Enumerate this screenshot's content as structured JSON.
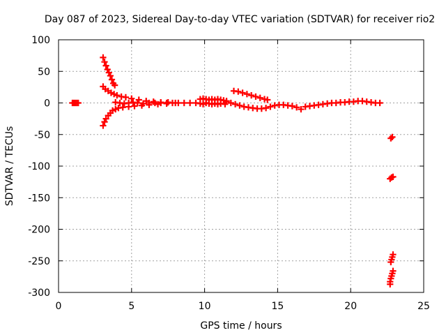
{
  "chart_data": {
    "type": "scatter",
    "title": "Day 087 of 2023, Sidereal Day-to-day VTEC variation (SDTVAR) for receiver rio2",
    "xlabel": "GPS time / hours",
    "ylabel": "SDTVAR / TECUs",
    "xlim": [
      0,
      25
    ],
    "ylim": [
      -300,
      100
    ],
    "xticks": [
      0,
      5,
      10,
      15,
      20,
      25
    ],
    "yticks": [
      100,
      50,
      0,
      -50,
      -100,
      -150,
      -200,
      -250,
      -300
    ],
    "grid": true,
    "marker": "+",
    "color": "#ff0000",
    "series": [
      {
        "points": [
          [
            0.95,
            0
          ],
          [
            1.05,
            0
          ],
          [
            1.15,
            0
          ],
          [
            1.25,
            0
          ],
          [
            1.35,
            0
          ],
          [
            3.05,
            72
          ],
          [
            3.15,
            65
          ],
          [
            3.25,
            59
          ],
          [
            3.35,
            53
          ],
          [
            3.45,
            48
          ],
          [
            3.55,
            43
          ],
          [
            3.65,
            37
          ],
          [
            3.75,
            31
          ],
          [
            3.85,
            28
          ],
          [
            3.05,
            26
          ],
          [
            3.2,
            22
          ],
          [
            3.4,
            19
          ],
          [
            3.6,
            16
          ],
          [
            3.8,
            14
          ],
          [
            4.0,
            12
          ],
          [
            4.3,
            10
          ],
          [
            4.6,
            9
          ],
          [
            5.0,
            7
          ],
          [
            5.5,
            5
          ],
          [
            6.0,
            3
          ],
          [
            6.5,
            2
          ],
          [
            7.0,
            1
          ],
          [
            7.5,
            1
          ],
          [
            3.05,
            -36
          ],
          [
            3.15,
            -30
          ],
          [
            3.25,
            -25
          ],
          [
            3.4,
            -20
          ],
          [
            3.55,
            -16
          ],
          [
            3.7,
            -12
          ],
          [
            3.9,
            -10
          ],
          [
            4.1,
            -8
          ],
          [
            4.4,
            -7
          ],
          [
            4.8,
            -6
          ],
          [
            5.2,
            -5
          ],
          [
            5.7,
            -4
          ],
          [
            6.2,
            -3
          ],
          [
            6.8,
            -2
          ],
          [
            7.4,
            -1
          ],
          [
            8.0,
            0
          ],
          [
            3.9,
            1
          ],
          [
            4.2,
            0
          ],
          [
            4.5,
            -1
          ],
          [
            4.8,
            0
          ],
          [
            5.1,
            1
          ],
          [
            5.4,
            0
          ],
          [
            5.8,
            -1
          ],
          [
            6.2,
            0
          ],
          [
            6.6,
            0
          ],
          [
            7.0,
            0
          ],
          [
            7.4,
            0
          ],
          [
            7.8,
            0
          ],
          [
            8.2,
            0
          ],
          [
            8.6,
            0
          ],
          [
            9.0,
            0
          ],
          [
            9.4,
            0
          ],
          [
            9.7,
            6
          ],
          [
            9.9,
            7
          ],
          [
            10.1,
            6
          ],
          [
            10.3,
            5
          ],
          [
            10.5,
            6
          ],
          [
            10.7,
            5
          ],
          [
            10.9,
            6
          ],
          [
            11.1,
            5
          ],
          [
            11.3,
            4
          ],
          [
            11.5,
            3
          ],
          [
            9.7,
            -1
          ],
          [
            9.9,
            -2
          ],
          [
            10.1,
            0
          ],
          [
            10.3,
            -1
          ],
          [
            10.5,
            -2
          ],
          [
            10.7,
            -1
          ],
          [
            10.9,
            -2
          ],
          [
            11.1,
            -1
          ],
          [
            11.4,
            -2
          ],
          [
            11.5,
            2
          ],
          [
            11.8,
            0
          ],
          [
            12.1,
            -2
          ],
          [
            12.4,
            -4
          ],
          [
            12.7,
            -6
          ],
          [
            13.0,
            -7
          ],
          [
            13.3,
            -8
          ],
          [
            13.6,
            -9
          ],
          [
            13.9,
            -9
          ],
          [
            14.2,
            -8
          ],
          [
            14.5,
            -6
          ],
          [
            14.8,
            -4
          ],
          [
            15.1,
            -3
          ],
          [
            15.4,
            -3
          ],
          [
            15.7,
            -4
          ],
          [
            16.0,
            -5
          ],
          [
            16.3,
            -7
          ],
          [
            16.6,
            -10
          ],
          [
            16.9,
            -6
          ],
          [
            17.2,
            -5
          ],
          [
            17.5,
            -4
          ],
          [
            17.8,
            -3
          ],
          [
            18.1,
            -2
          ],
          [
            18.4,
            -1
          ],
          [
            18.7,
            0
          ],
          [
            19.0,
            0
          ],
          [
            19.3,
            1
          ],
          [
            19.6,
            1
          ],
          [
            19.9,
            2
          ],
          [
            20.2,
            2
          ],
          [
            20.5,
            3
          ],
          [
            20.8,
            3
          ],
          [
            21.1,
            2
          ],
          [
            21.4,
            1
          ],
          [
            21.7,
            0
          ],
          [
            22.0,
            0
          ],
          [
            12.0,
            19
          ],
          [
            12.3,
            18
          ],
          [
            12.6,
            16
          ],
          [
            12.9,
            14
          ],
          [
            13.2,
            12
          ],
          [
            13.5,
            10
          ],
          [
            13.8,
            8
          ],
          [
            14.1,
            6
          ],
          [
            14.3,
            5
          ],
          [
            22.75,
            -56
          ],
          [
            22.85,
            -54
          ],
          [
            22.7,
            -120
          ],
          [
            22.8,
            -118
          ],
          [
            22.9,
            -117
          ],
          [
            22.9,
            -240
          ],
          [
            22.85,
            -244
          ],
          [
            22.8,
            -248
          ],
          [
            22.75,
            -252
          ],
          [
            22.9,
            -266
          ],
          [
            22.85,
            -270
          ],
          [
            22.8,
            -274
          ],
          [
            22.75,
            -278
          ],
          [
            22.7,
            -283
          ],
          [
            22.7,
            -287
          ]
        ]
      }
    ]
  }
}
